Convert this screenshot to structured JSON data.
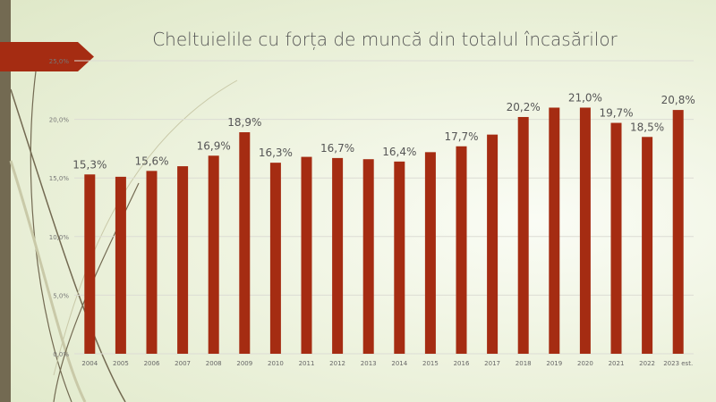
{
  "chart_data": {
    "type": "bar",
    "title": "Cheltuielile cu forța de muncă din totalul încasărilor",
    "xlabel": "",
    "ylabel": "",
    "categories": [
      "2004",
      "2005",
      "2006",
      "2007",
      "2008",
      "2009",
      "2010",
      "2011",
      "2012",
      "2013",
      "2014",
      "2015",
      "2016",
      "2017",
      "2018",
      "2019",
      "2020",
      "2021",
      "2022",
      "2023 est."
    ],
    "values": [
      15.3,
      15.1,
      15.6,
      16.0,
      16.9,
      18.9,
      16.3,
      16.8,
      16.7,
      16.6,
      16.4,
      17.2,
      17.7,
      18.7,
      20.2,
      21.0,
      21.0,
      19.7,
      18.5,
      20.8
    ],
    "data_labels": [
      "15,3%",
      "",
      "15,6%",
      "",
      "16,9%",
      "18,9%",
      "16,3%",
      "",
      "16,7%",
      "",
      "16,4%",
      "",
      "17,7%",
      "",
      "20,2%",
      "",
      "21,0%",
      "19,7%",
      "18,5%",
      "20,8%"
    ],
    "yticks": [
      "0,0%",
      "5,0%",
      "10,0%",
      "15,0%",
      "20,0%",
      "25,0%"
    ],
    "ylim": [
      0,
      25
    ],
    "grid": true,
    "bar_color": "#a52c12"
  }
}
